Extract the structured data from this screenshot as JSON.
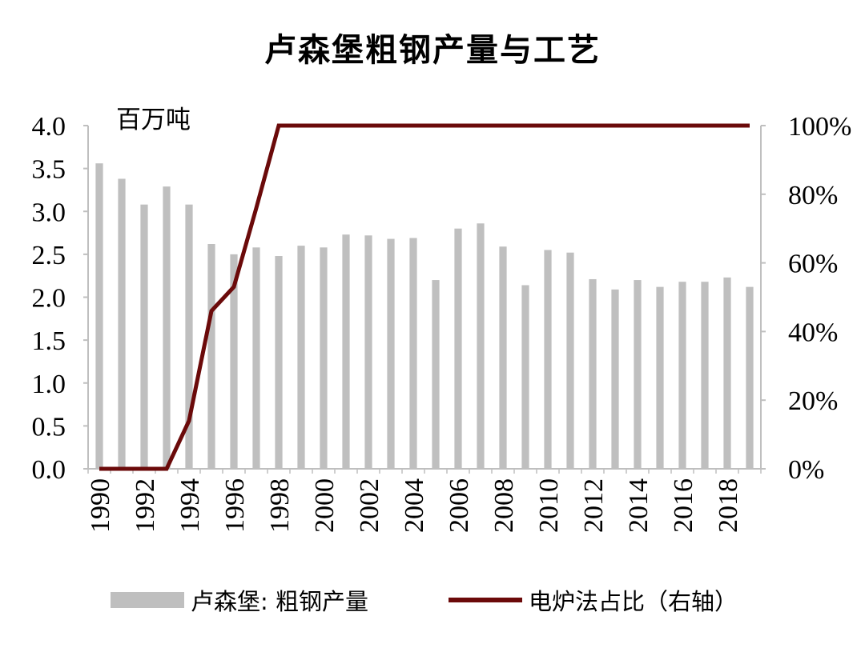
{
  "chart_data": {
    "type": "bar+line",
    "title": "卢森堡粗钢产量与工艺",
    "left_unit": "百万吨",
    "categories": [
      "1990",
      "1991",
      "1992",
      "1993",
      "1994",
      "1995",
      "1996",
      "1997",
      "1998",
      "1999",
      "2000",
      "2001",
      "2002",
      "2003",
      "2004",
      "2005",
      "2006",
      "2007",
      "2008",
      "2009",
      "2010",
      "2011",
      "2012",
      "2013",
      "2014",
      "2015",
      "2016",
      "2017",
      "2018",
      "2019"
    ],
    "x_tick_labels": [
      "1990",
      "1992",
      "1994",
      "1996",
      "1998",
      "2000",
      "2002",
      "2004",
      "2006",
      "2008",
      "2010",
      "2012",
      "2014",
      "2016",
      "2018"
    ],
    "series": [
      {
        "name": "卢森堡: 粗钢产量",
        "type": "bar",
        "axis": "left",
        "color": "#bfbfbf",
        "values": [
          3.56,
          3.38,
          3.08,
          3.29,
          3.08,
          2.62,
          2.5,
          2.58,
          2.48,
          2.6,
          2.58,
          2.73,
          2.72,
          2.68,
          2.69,
          2.2,
          2.8,
          2.86,
          2.59,
          2.14,
          2.55,
          2.52,
          2.21,
          2.09,
          2.2,
          2.12,
          2.18,
          2.18,
          2.23,
          2.12
        ]
      },
      {
        "name": "电炉法占比（右轴）",
        "type": "line",
        "axis": "right",
        "color": "#6b0a0a",
        "values": [
          0,
          0,
          0,
          0,
          14,
          46,
          53,
          76,
          100,
          100,
          100,
          100,
          100,
          100,
          100,
          100,
          100,
          100,
          100,
          100,
          100,
          100,
          100,
          100,
          100,
          100,
          100,
          100,
          100,
          100
        ]
      }
    ],
    "left_axis": {
      "ylim": [
        0,
        4
      ],
      "ticks": [
        "0.0",
        "0.5",
        "1.0",
        "1.5",
        "2.0",
        "2.5",
        "3.0",
        "3.5",
        "4.0"
      ]
    },
    "right_axis": {
      "ylim": [
        0,
        100
      ],
      "ticks": [
        "0%",
        "20%",
        "40%",
        "60%",
        "80%",
        "100%"
      ]
    },
    "grid": false,
    "legend_position": "bottom"
  }
}
